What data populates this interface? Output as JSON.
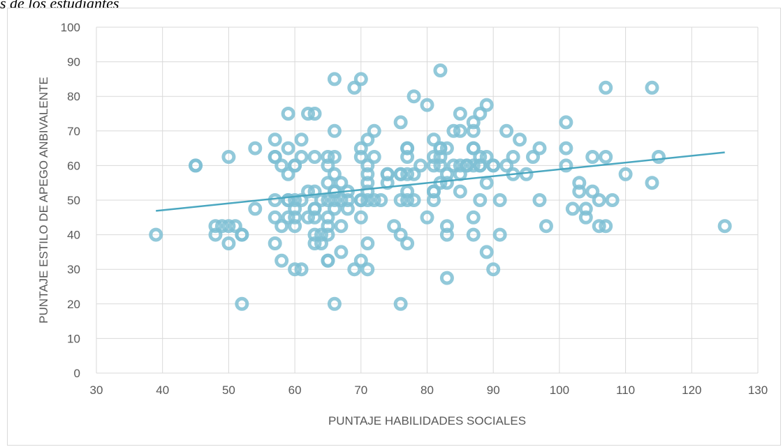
{
  "caption": "s de los estudiantes",
  "chart_data": {
    "type": "scatter",
    "title": "",
    "xlabel": "PUNTAJE HABILIDADES SOCIALES",
    "ylabel": "PUNTAJE ESTILO DE APEGO ANBIVALENTE",
    "xlim": [
      30,
      130
    ],
    "ylim": [
      0,
      100
    ],
    "xticks": [
      "30",
      "40",
      "50",
      "60",
      "70",
      "80",
      "90",
      "100",
      "110",
      "120",
      "130"
    ],
    "yticks": [
      "0",
      "10",
      "20",
      "30",
      "40",
      "50",
      "60",
      "70",
      "80",
      "90",
      "100"
    ],
    "grid": true,
    "legend": "none",
    "marker_color": "#7fc0d3",
    "trendline_color": "#4aa7c0",
    "trendline": {
      "x": [
        39,
        125
      ],
      "y": [
        46.9,
        63.8
      ]
    },
    "points": [
      [
        39,
        40
      ],
      [
        45,
        60
      ],
      [
        45,
        60
      ],
      [
        48,
        42.5
      ],
      [
        48,
        40
      ],
      [
        49,
        42.5
      ],
      [
        50,
        42.5
      ],
      [
        50,
        37.5
      ],
      [
        50,
        62.5
      ],
      [
        51,
        42.5
      ],
      [
        52,
        40
      ],
      [
        52,
        40
      ],
      [
        52,
        20
      ],
      [
        54,
        47.5
      ],
      [
        54,
        65
      ],
      [
        57,
        67.5
      ],
      [
        57,
        62.5
      ],
      [
        57,
        62.5
      ],
      [
        57,
        50
      ],
      [
        57,
        45
      ],
      [
        57,
        37.5
      ],
      [
        58,
        60
      ],
      [
        58,
        42.5
      ],
      [
        58,
        32.5
      ],
      [
        59,
        75
      ],
      [
        59,
        65
      ],
      [
        59,
        57.5
      ],
      [
        59,
        50
      ],
      [
        59,
        50
      ],
      [
        59,
        45
      ],
      [
        60,
        60
      ],
      [
        60,
        60
      ],
      [
        60,
        50
      ],
      [
        60,
        47.5
      ],
      [
        60,
        45
      ],
      [
        60,
        42.5
      ],
      [
        60,
        30
      ],
      [
        61,
        67.5
      ],
      [
        61,
        62.5
      ],
      [
        61,
        50
      ],
      [
        61,
        30
      ],
      [
        62,
        75
      ],
      [
        62,
        52.5
      ],
      [
        62,
        45
      ],
      [
        63,
        75
      ],
      [
        63,
        62.5
      ],
      [
        63,
        52.5
      ],
      [
        63,
        47.5
      ],
      [
        63,
        47.5
      ],
      [
        63,
        45
      ],
      [
        63,
        40
      ],
      [
        63,
        37.5
      ],
      [
        64,
        50
      ],
      [
        64,
        37.5
      ],
      [
        64,
        40
      ],
      [
        65,
        62.5
      ],
      [
        65,
        60
      ],
      [
        65,
        55
      ],
      [
        65,
        50
      ],
      [
        65,
        45
      ],
      [
        65,
        42.5
      ],
      [
        65,
        40
      ],
      [
        65,
        32.5
      ],
      [
        65,
        32.5
      ],
      [
        66,
        85
      ],
      [
        66,
        70
      ],
      [
        66,
        62.5
      ],
      [
        66,
        57.5
      ],
      [
        66,
        52.5
      ],
      [
        66,
        52.5
      ],
      [
        66,
        50
      ],
      [
        66,
        47.5
      ],
      [
        66,
        20
      ],
      [
        67,
        55
      ],
      [
        67,
        50
      ],
      [
        67,
        42.5
      ],
      [
        67,
        35
      ],
      [
        68,
        52.5
      ],
      [
        68,
        50
      ],
      [
        68,
        47.5
      ],
      [
        69,
        82.5
      ],
      [
        69,
        30
      ],
      [
        70,
        85
      ],
      [
        70,
        65
      ],
      [
        70,
        62.5
      ],
      [
        70,
        50
      ],
      [
        70,
        50
      ],
      [
        70,
        45
      ],
      [
        70,
        32.5
      ],
      [
        71,
        67.5
      ],
      [
        71,
        60
      ],
      [
        71,
        57.5
      ],
      [
        71,
        55
      ],
      [
        71,
        52.5
      ],
      [
        71,
        50
      ],
      [
        71,
        37.5
      ],
      [
        71,
        30
      ],
      [
        72,
        70
      ],
      [
        72,
        62.5
      ],
      [
        72,
        50
      ],
      [
        73,
        50
      ],
      [
        74,
        57.5
      ],
      [
        74,
        57.5
      ],
      [
        74,
        55
      ],
      [
        75,
        42.5
      ],
      [
        76,
        72.5
      ],
      [
        76,
        57.5
      ],
      [
        76,
        57.5
      ],
      [
        76,
        50
      ],
      [
        76,
        40
      ],
      [
        76,
        20
      ],
      [
        77,
        65
      ],
      [
        77,
        65
      ],
      [
        77,
        62.5
      ],
      [
        77,
        57.5
      ],
      [
        77,
        52.5
      ],
      [
        77,
        50
      ],
      [
        77,
        37.5
      ],
      [
        78,
        80
      ],
      [
        78,
        57.5
      ],
      [
        78,
        50
      ],
      [
        79,
        60
      ],
      [
        80,
        77.5
      ],
      [
        80,
        45
      ],
      [
        81,
        67.5
      ],
      [
        81,
        62.5
      ],
      [
        81,
        60
      ],
      [
        81,
        52.5
      ],
      [
        81,
        52.5
      ],
      [
        81,
        50
      ],
      [
        82,
        87.5
      ],
      [
        82,
        65
      ],
      [
        82,
        65
      ],
      [
        82,
        62.5
      ],
      [
        82,
        60
      ],
      [
        82,
        55
      ],
      [
        83,
        65
      ],
      [
        83,
        57.5
      ],
      [
        83,
        55
      ],
      [
        83,
        42.5
      ],
      [
        83,
        40
      ],
      [
        83,
        27.5
      ],
      [
        84,
        70
      ],
      [
        84,
        60
      ],
      [
        85,
        75
      ],
      [
        85,
        70
      ],
      [
        85,
        60
      ],
      [
        85,
        57.5
      ],
      [
        85,
        52.5
      ],
      [
        86,
        60
      ],
      [
        86,
        60
      ],
      [
        87,
        72.5
      ],
      [
        87,
        70
      ],
      [
        87,
        65
      ],
      [
        87,
        65
      ],
      [
        87,
        60
      ],
      [
        87,
        45
      ],
      [
        87,
        40
      ],
      [
        88,
        75
      ],
      [
        88,
        62.5
      ],
      [
        88,
        60
      ],
      [
        88,
        60
      ],
      [
        88,
        50
      ],
      [
        89,
        77.5
      ],
      [
        89,
        62.5
      ],
      [
        89,
        55
      ],
      [
        89,
        35
      ],
      [
        90,
        60
      ],
      [
        90,
        60
      ],
      [
        90,
        30
      ],
      [
        91,
        50
      ],
      [
        91,
        40
      ],
      [
        92,
        70
      ],
      [
        92,
        60
      ],
      [
        93,
        62.5
      ],
      [
        93,
        57.5
      ],
      [
        94,
        67.5
      ],
      [
        95,
        57.5
      ],
      [
        96,
        62.5
      ],
      [
        97,
        65
      ],
      [
        97,
        50
      ],
      [
        98,
        42.5
      ],
      [
        101,
        72.5
      ],
      [
        101,
        65
      ],
      [
        101,
        60
      ],
      [
        102,
        47.5
      ],
      [
        103,
        55
      ],
      [
        103,
        52.5
      ],
      [
        104,
        47.5
      ],
      [
        104,
        45
      ],
      [
        105,
        62.5
      ],
      [
        105,
        52.5
      ],
      [
        106,
        50
      ],
      [
        106,
        42.5
      ],
      [
        107,
        82.5
      ],
      [
        107,
        62.5
      ],
      [
        107,
        42.5
      ],
      [
        108,
        50
      ],
      [
        110,
        57.5
      ],
      [
        114,
        82.5
      ],
      [
        114,
        55
      ],
      [
        115,
        62.5
      ],
      [
        125,
        42.5
      ]
    ]
  }
}
